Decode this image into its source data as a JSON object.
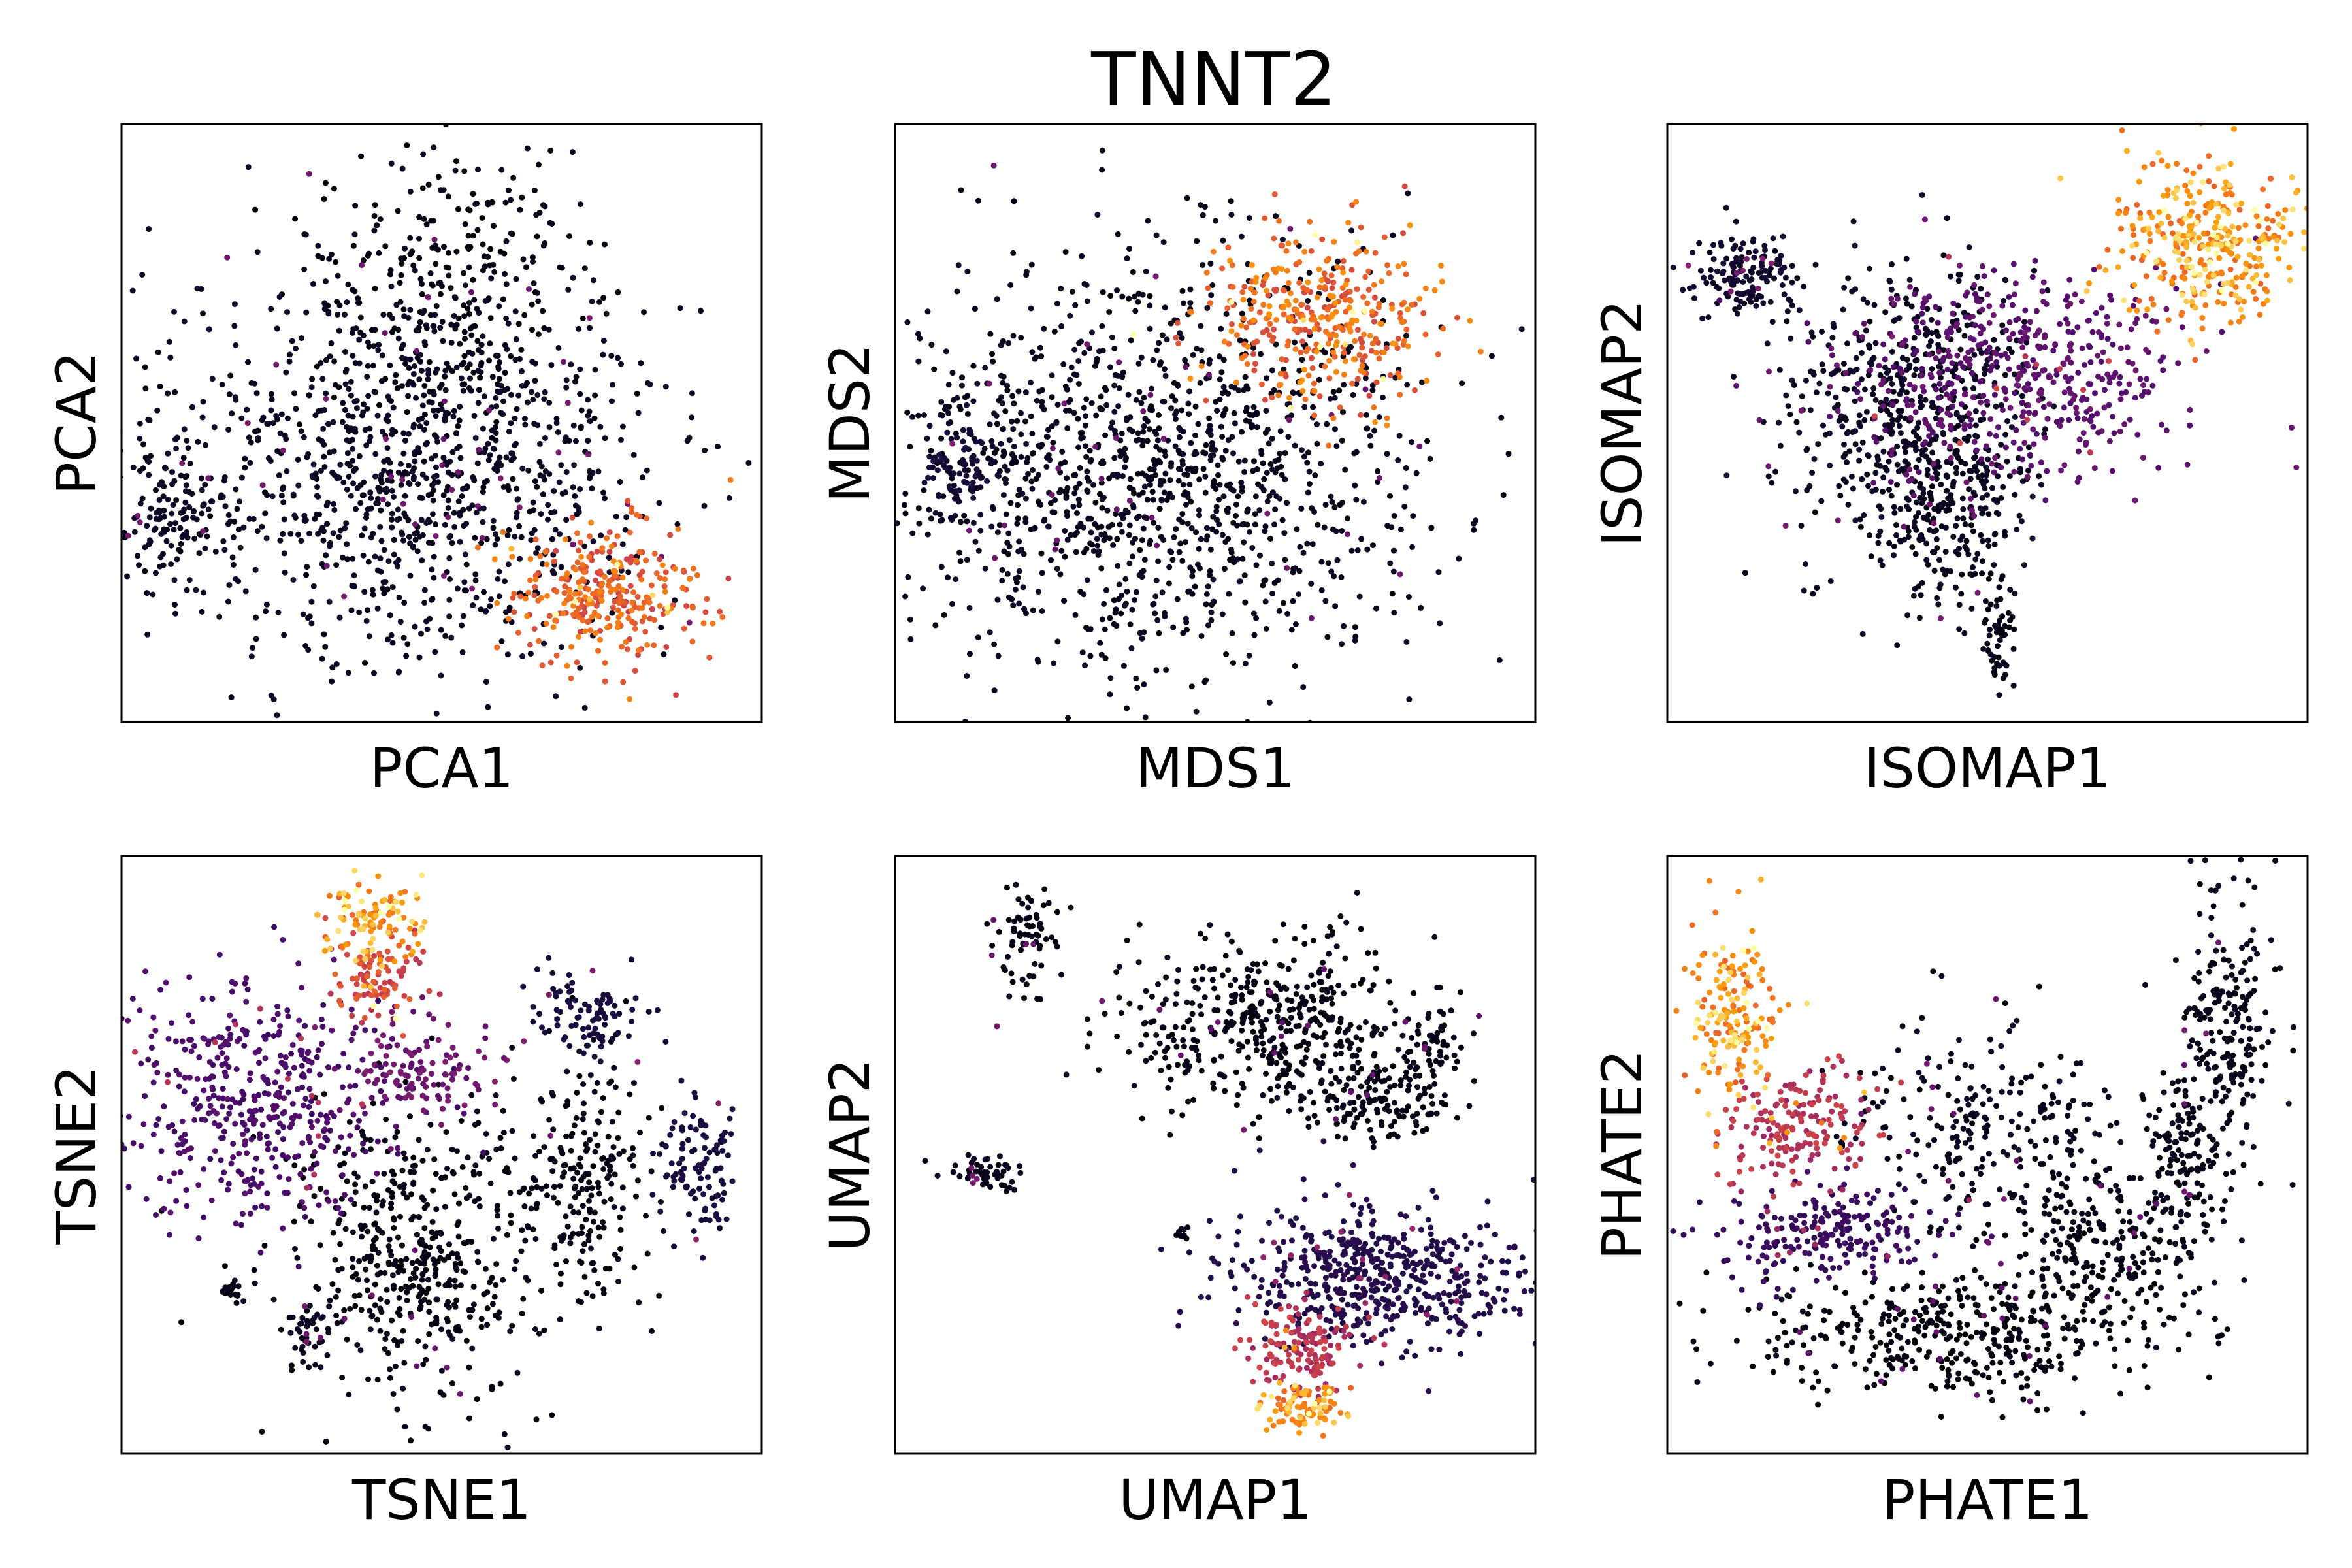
{
  "figure": {
    "title": "TNNT2"
  },
  "colormap": {
    "name": "inferno",
    "low": "#000004",
    "mid": "#781c6d",
    "high": "#fcffa4"
  },
  "chart_data": [
    {
      "type": "scatter",
      "xlabel": "PCA1",
      "ylabel": "PCA2",
      "ticks": "none",
      "grid": false,
      "legend": "none",
      "clusters": [
        {
          "cx": 0.45,
          "cy": 0.58,
          "sx": 0.2,
          "sy": 0.17,
          "weight": 0.62,
          "value": 0.06
        },
        {
          "cx": 0.08,
          "cy": 0.66,
          "sx": 0.035,
          "sy": 0.05,
          "weight": 0.06,
          "value": 0.06
        },
        {
          "cx": 0.52,
          "cy": 0.28,
          "sx": 0.12,
          "sy": 0.12,
          "weight": 0.15,
          "value": 0.03
        },
        {
          "cx": 0.76,
          "cy": 0.78,
          "sx": 0.08,
          "sy": 0.06,
          "weight": 0.17,
          "value": 0.72
        }
      ]
    },
    {
      "type": "scatter",
      "xlabel": "MDS1",
      "ylabel": "MDS2",
      "ticks": "none",
      "grid": false,
      "legend": "none",
      "clusters": [
        {
          "cx": 0.4,
          "cy": 0.58,
          "sx": 0.21,
          "sy": 0.17,
          "weight": 0.74,
          "value": 0.05
        },
        {
          "cx": 0.1,
          "cy": 0.57,
          "sx": 0.03,
          "sy": 0.04,
          "weight": 0.05,
          "value": 0.1
        },
        {
          "cx": 0.66,
          "cy": 0.33,
          "sx": 0.09,
          "sy": 0.07,
          "weight": 0.21,
          "value": 0.75
        }
      ]
    },
    {
      "type": "scatter",
      "xlabel": "ISOMAP1",
      "ylabel": "ISOMAP2",
      "ticks": "none",
      "grid": false,
      "legend": "none",
      "clusters": [
        {
          "cx": 0.12,
          "cy": 0.25,
          "sx": 0.04,
          "sy": 0.035,
          "weight": 0.08,
          "value": 0.08
        },
        {
          "cx": 0.38,
          "cy": 0.47,
          "sx": 0.1,
          "sy": 0.12,
          "weight": 0.3,
          "value": 0.06
        },
        {
          "cx": 0.54,
          "cy": 0.42,
          "sx": 0.14,
          "sy": 0.08,
          "weight": 0.27,
          "value": 0.3
        },
        {
          "cx": 0.44,
          "cy": 0.66,
          "sx": 0.06,
          "sy": 0.08,
          "weight": 0.12,
          "value": 0.05
        },
        {
          "cx": 0.52,
          "cy": 0.86,
          "sx": 0.015,
          "sy": 0.05,
          "weight": 0.03,
          "value": 0.04
        },
        {
          "cx": 0.84,
          "cy": 0.2,
          "sx": 0.07,
          "sy": 0.07,
          "weight": 0.2,
          "value": 0.85
        }
      ]
    },
    {
      "type": "scatter",
      "xlabel": "TSNE1",
      "ylabel": "TSNE2",
      "ticks": "none",
      "grid": false,
      "legend": "none",
      "clusters": [
        {
          "cx": 0.39,
          "cy": 0.11,
          "sx": 0.04,
          "sy": 0.035,
          "weight": 0.06,
          "value": 0.85
        },
        {
          "cx": 0.4,
          "cy": 0.2,
          "sx": 0.04,
          "sy": 0.035,
          "weight": 0.05,
          "value": 0.65
        },
        {
          "cx": 0.22,
          "cy": 0.41,
          "sx": 0.11,
          "sy": 0.1,
          "weight": 0.26,
          "value": 0.25
        },
        {
          "cx": 0.47,
          "cy": 0.36,
          "sx": 0.06,
          "sy": 0.04,
          "weight": 0.06,
          "value": 0.35
        },
        {
          "cx": 0.46,
          "cy": 0.68,
          "sx": 0.1,
          "sy": 0.12,
          "weight": 0.28,
          "value": 0.03
        },
        {
          "cx": 0.72,
          "cy": 0.55,
          "sx": 0.05,
          "sy": 0.11,
          "weight": 0.12,
          "value": 0.03
        },
        {
          "cx": 0.73,
          "cy": 0.26,
          "sx": 0.04,
          "sy": 0.035,
          "weight": 0.05,
          "value": 0.12
        },
        {
          "cx": 0.9,
          "cy": 0.52,
          "sx": 0.035,
          "sy": 0.06,
          "weight": 0.06,
          "value": 0.12
        },
        {
          "cx": 0.17,
          "cy": 0.73,
          "sx": 0.01,
          "sy": 0.01,
          "weight": 0.01,
          "value": 0.04
        },
        {
          "cx": 0.29,
          "cy": 0.8,
          "sx": 0.015,
          "sy": 0.025,
          "weight": 0.02,
          "value": 0.06
        }
      ]
    },
    {
      "type": "scatter",
      "xlabel": "UMAP1",
      "ylabel": "UMAP2",
      "ticks": "none",
      "grid": false,
      "legend": "none",
      "clusters": [
        {
          "cx": 0.21,
          "cy": 0.14,
          "sx": 0.025,
          "sy": 0.06,
          "weight": 0.04,
          "value": 0.03
        },
        {
          "cx": 0.58,
          "cy": 0.28,
          "sx": 0.12,
          "sy": 0.07,
          "weight": 0.26,
          "value": 0.03
        },
        {
          "cx": 0.77,
          "cy": 0.41,
          "sx": 0.06,
          "sy": 0.035,
          "weight": 0.08,
          "value": 0.03
        },
        {
          "cx": 0.85,
          "cy": 0.3,
          "sx": 0.02,
          "sy": 0.03,
          "weight": 0.02,
          "value": 0.04
        },
        {
          "cx": 0.14,
          "cy": 0.53,
          "sx": 0.03,
          "sy": 0.012,
          "weight": 0.03,
          "value": 0.05
        },
        {
          "cx": 0.45,
          "cy": 0.63,
          "sx": 0.005,
          "sy": 0.008,
          "weight": 0.005,
          "value": 0.03
        },
        {
          "cx": 0.75,
          "cy": 0.7,
          "sx": 0.12,
          "sy": 0.06,
          "weight": 0.3,
          "value": 0.15
        },
        {
          "cx": 0.63,
          "cy": 0.83,
          "sx": 0.04,
          "sy": 0.04,
          "weight": 0.08,
          "value": 0.55
        },
        {
          "cx": 0.64,
          "cy": 0.92,
          "sx": 0.03,
          "sy": 0.02,
          "weight": 0.05,
          "value": 0.85
        }
      ]
    },
    {
      "type": "scatter",
      "xlabel": "PHATE1",
      "ylabel": "PHATE2",
      "ticks": "none",
      "grid": false,
      "legend": "none",
      "clusters": [
        {
          "cx": 0.1,
          "cy": 0.28,
          "sx": 0.035,
          "sy": 0.08,
          "weight": 0.1,
          "value": 0.85
        },
        {
          "cx": 0.2,
          "cy": 0.45,
          "sx": 0.06,
          "sy": 0.05,
          "weight": 0.1,
          "value": 0.55
        },
        {
          "cx": 0.25,
          "cy": 0.64,
          "sx": 0.09,
          "sy": 0.04,
          "weight": 0.12,
          "value": 0.2
        },
        {
          "cx": 0.5,
          "cy": 0.46,
          "sx": 0.1,
          "sy": 0.09,
          "weight": 0.14,
          "value": 0.05
        },
        {
          "cx": 0.45,
          "cy": 0.8,
          "sx": 0.16,
          "sy": 0.05,
          "weight": 0.22,
          "value": 0.02
        },
        {
          "cx": 0.68,
          "cy": 0.66,
          "sx": 0.09,
          "sy": 0.07,
          "weight": 0.12,
          "value": 0.03
        },
        {
          "cx": 0.88,
          "cy": 0.3,
          "sx": 0.035,
          "sy": 0.12,
          "weight": 0.12,
          "value": 0.04
        },
        {
          "cx": 0.8,
          "cy": 0.52,
          "sx": 0.03,
          "sy": 0.08,
          "weight": 0.08,
          "value": 0.04
        }
      ]
    }
  ]
}
